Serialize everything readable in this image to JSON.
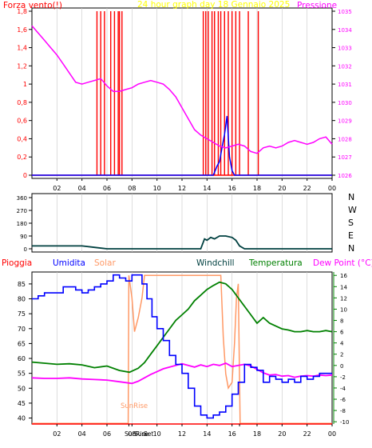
{
  "colors": {
    "axis": "#000000",
    "grid": "#c8c8c8",
    "wind_speed": "#0000ff",
    "wind_gust": "#ff0000",
    "pressure": "#ff00ff",
    "wind_dir": "#004040",
    "rain": "#ff0000",
    "humidity": "#0000ff",
    "solar": "#ff9966",
    "windchill": "#004040",
    "temperature": "#008000",
    "dew_point": "#ff00ff",
    "title": "#ffff00",
    "right_axis_bottom": "#008000",
    "solar_label": "#ff9966"
  },
  "chart_data": [
    {
      "type": "line",
      "id": "wind-pressure",
      "title": "24 hour graph day   18 Gennaio 2025",
      "ylabel_left": "Forza vento(!)",
      "ylabel_right": "Pressione",
      "ylim_left": [
        0,
        1.8
      ],
      "yticks_left": [
        "0",
        "0,2",
        "0,4",
        "0,6",
        "0,8",
        "1",
        "1,2",
        "1,4",
        "1,6",
        "1,8"
      ],
      "ylim_right": [
        1026,
        1035
      ],
      "yticks_right": [
        "1026",
        "1027",
        "1028",
        "1029",
        "1030",
        "1031",
        "1032",
        "1033",
        "1034",
        "1035"
      ],
      "xlim": [
        0,
        24
      ],
      "xticks": [
        "02",
        "04",
        "06",
        "08",
        "10",
        "12",
        "14",
        "16",
        "18",
        "20",
        "22",
        "00"
      ],
      "grid": true,
      "series": [
        {
          "name": "Pressione",
          "axis": "right",
          "x": [
            0,
            0.5,
            1,
            1.5,
            2,
            2.5,
            3,
            3.5,
            4,
            4.5,
            5,
            5.5,
            6,
            6.5,
            7,
            7.5,
            8,
            8.5,
            9,
            9.5,
            10,
            10.5,
            11,
            11.5,
            12,
            12.5,
            13,
            13.5,
            14,
            14.5,
            15,
            15.5,
            16,
            16.5,
            17,
            17.5,
            18,
            18.5,
            19,
            19.5,
            20,
            20.5,
            21,
            21.5,
            22,
            22.5,
            23,
            23.5,
            24
          ],
          "values": [
            1034.2,
            1033.8,
            1033.4,
            1033.0,
            1032.6,
            1032.1,
            1031.6,
            1031.1,
            1031.0,
            1031.1,
            1031.2,
            1031.3,
            1030.9,
            1030.6,
            1030.6,
            1030.7,
            1030.8,
            1031.0,
            1031.1,
            1031.2,
            1031.1,
            1031.0,
            1030.7,
            1030.3,
            1029.7,
            1029.1,
            1028.5,
            1028.2,
            1028.0,
            1027.8,
            1027.6,
            1027.5,
            1027.6,
            1027.7,
            1027.6,
            1027.3,
            1027.2,
            1027.5,
            1027.6,
            1027.5,
            1027.6,
            1027.8,
            1027.9,
            1027.8,
            1027.7,
            1027.8,
            1028.0,
            1028.1,
            1027.7
          ]
        },
        {
          "name": "wind speed",
          "axis": "left",
          "x": [
            0,
            14.5,
            14.8,
            15.0,
            15.2,
            15.4,
            15.6,
            15.8,
            16.0,
            16.2,
            24
          ],
          "values": [
            0,
            0,
            0.1,
            0.15,
            0.3,
            0.45,
            0.65,
            0.2,
            0.05,
            0,
            0
          ]
        },
        {
          "name": "wind gust",
          "axis": "left",
          "spikes": [
            5.2,
            5.5,
            5.8,
            6.3,
            6.6,
            6.9,
            7.0,
            7.2,
            13.7,
            13.9,
            14.1,
            14.4,
            14.6,
            14.9,
            15.1,
            15.4,
            15.7,
            16.0,
            16.3,
            16.6,
            17.3,
            18.1
          ],
          "peak": 1.8
        }
      ]
    },
    {
      "type": "line",
      "id": "wind-direction",
      "ylim": [
        0,
        360
      ],
      "yticks": [
        "0",
        "90",
        "180",
        "270",
        "360"
      ],
      "direction_labels": [
        "N",
        "W",
        "S",
        "E",
        "N"
      ],
      "xlim": [
        0,
        24
      ],
      "grid": true,
      "series": [
        {
          "name": "Direzione",
          "x": [
            0,
            2,
            4,
            5,
            6,
            13.5,
            13.8,
            14.0,
            14.3,
            14.6,
            15.0,
            15.5,
            16.0,
            16.3,
            16.6,
            17,
            24
          ],
          "values": [
            20,
            20,
            20,
            10,
            0,
            0,
            70,
            60,
            80,
            70,
            90,
            90,
            80,
            60,
            20,
            0,
            0
          ]
        }
      ]
    },
    {
      "type": "line",
      "id": "temperature-humidity",
      "legend": [
        "Pioggia",
        "Umidita",
        "Solar",
        "Windchill",
        "Temperatura",
        "Dew Point (°C)"
      ],
      "ylim_left": [
        38,
        89
      ],
      "yticks_left": [
        "40",
        "45",
        "50",
        "55",
        "60",
        "65",
        "70",
        "75",
        "80",
        "85"
      ],
      "ylim_right": [
        -10.4,
        16.6
      ],
      "yticks_right": [
        "-10",
        "-8",
        "-6",
        "-4",
        "-2",
        "0",
        "2",
        "4",
        "6",
        "8",
        "10",
        "12",
        "14",
        "16"
      ],
      "xlim": [
        0,
        24
      ],
      "xticks": [
        "02",
        "04",
        "06",
        "08",
        "10",
        "12",
        "14",
        "16",
        "18",
        "20",
        "22",
        "00"
      ],
      "annotations": [
        "SunRise",
        "SunRise",
        "Sun",
        "Set"
      ],
      "sunrise_hour": 7.75,
      "sunset_hour": 16.6,
      "grid": true,
      "series": [
        {
          "name": "Umidita",
          "axis": "left",
          "step": true,
          "x": [
            0,
            0.5,
            1,
            1.5,
            2,
            2.5,
            3,
            3.5,
            4,
            4.5,
            5,
            5.5,
            6,
            6.5,
            7,
            7.5,
            8,
            8.5,
            8.8,
            9.2,
            9.6,
            10.0,
            10.5,
            11,
            11.5,
            12,
            12.5,
            13,
            13.5,
            14,
            14.5,
            15,
            15.5,
            16,
            16.5,
            17,
            17.5,
            18,
            18.5,
            19,
            19.5,
            20,
            20.5,
            21,
            21.5,
            22,
            22.5,
            23,
            24
          ],
          "values": [
            80,
            81,
            82,
            82,
            82,
            84,
            84,
            83,
            82,
            83,
            84,
            85,
            86,
            88,
            87,
            86,
            88,
            88,
            85,
            80,
            74,
            70,
            66,
            61,
            58,
            55,
            50,
            44,
            41,
            40,
            41,
            42,
            44,
            48,
            52,
            58,
            57,
            56,
            52,
            54,
            53,
            52,
            53,
            52,
            54,
            53,
            54,
            55,
            55
          ]
        },
        {
          "name": "Temperatura",
          "axis": "right",
          "x": [
            0,
            1,
            2,
            3,
            4,
            5,
            6,
            7,
            7.8,
            8.5,
            9,
            9.5,
            10,
            10.5,
            11,
            11.5,
            12,
            12.5,
            13,
            13.5,
            14,
            14.5,
            15,
            15.5,
            16,
            16.5,
            17,
            17.5,
            18,
            18.5,
            19,
            19.5,
            20,
            20.5,
            21,
            21.5,
            22,
            22.5,
            23,
            23.5,
            24
          ],
          "values": [
            0.6,
            0.4,
            0.2,
            0.3,
            0.1,
            -0.4,
            -0.1,
            -0.9,
            -1.2,
            -0.5,
            0.5,
            2.0,
            3.5,
            5.0,
            6.5,
            8.0,
            9.0,
            10.0,
            11.5,
            12.5,
            13.5,
            14.2,
            14.8,
            14.5,
            13.5,
            12.0,
            10.5,
            9.0,
            7.5,
            8.5,
            7.5,
            7.0,
            6.5,
            6.3,
            6.0,
            6.0,
            6.2,
            6.0,
            6.0,
            6.2,
            6.0
          ]
        },
        {
          "name": "Windchill",
          "axis": "right",
          "x": [
            0,
            1,
            2,
            3,
            4,
            5,
            6,
            7,
            7.8,
            8.5,
            9,
            9.5,
            10,
            10.5,
            11,
            11.5,
            12,
            12.5,
            13,
            13.5,
            14,
            14.5,
            15,
            15.5,
            16,
            16.5,
            17,
            17.5,
            18,
            18.5,
            19,
            19.5,
            20,
            20.5,
            21,
            21.5,
            22,
            22.5,
            23,
            23.5,
            24
          ],
          "values": [
            0.6,
            0.4,
            0.2,
            0.3,
            0.1,
            -0.4,
            -0.1,
            -0.9,
            -1.2,
            -0.5,
            0.5,
            2.0,
            3.5,
            5.0,
            6.5,
            8.0,
            9.0,
            10.0,
            11.5,
            12.5,
            13.5,
            14.2,
            14.8,
            14.5,
            13.5,
            12.0,
            10.5,
            9.0,
            7.5,
            8.5,
            7.5,
            7.0,
            6.5,
            6.3,
            6.0,
            6.0,
            6.2,
            6.0,
            6.0,
            6.2,
            6.0
          ]
        },
        {
          "name": "Dew Point",
          "axis": "right",
          "x": [
            0,
            1,
            2,
            3,
            4,
            5,
            6,
            7,
            8,
            8.5,
            9,
            9.5,
            10,
            10.5,
            11,
            11.5,
            12,
            12.5,
            13,
            13.5,
            14,
            14.5,
            15,
            15.5,
            16,
            16.5,
            17,
            17.5,
            18,
            18.5,
            19,
            19.5,
            20,
            20.5,
            21,
            21.5,
            22,
            22.5,
            23,
            23.5,
            24
          ],
          "values": [
            -2.2,
            -2.3,
            -2.3,
            -2.2,
            -2.4,
            -2.5,
            -2.6,
            -2.9,
            -3.2,
            -2.8,
            -2.2,
            -1.6,
            -1.1,
            -0.6,
            -0.3,
            0.0,
            0.3,
            0.0,
            -0.3,
            0.1,
            -0.2,
            0.2,
            0.0,
            0.4,
            -0.2,
            0.0,
            0.2,
            -0.1,
            -0.7,
            -1.3,
            -1.7,
            -1.6,
            -1.9,
            -1.8,
            -2.1,
            -1.9,
            -1.8,
            -1.9,
            -1.7,
            -1.8,
            -1.7
          ]
        },
        {
          "name": "Solar",
          "axis": "right",
          "x": [
            0,
            7.7,
            7.75,
            8.0,
            8.2,
            8.5,
            8.8,
            9.0,
            9.3,
            9.6,
            15.1,
            15.3,
            15.5,
            15.7,
            16.0,
            16.2,
            16.35,
            16.5,
            16.65,
            24
          ],
          "values": [
            -10.3,
            -10.3,
            16.0,
            12.0,
            6.0,
            8.5,
            12.0,
            16.0,
            16.0,
            16.0,
            16.0,
            5.0,
            -1.5,
            -4.0,
            -3.0,
            4.0,
            12.0,
            14.5,
            -10.3,
            -10.3
          ]
        },
        {
          "name": "Pioggia",
          "axis": "left",
          "x": [
            0,
            24
          ],
          "values": [
            38,
            38
          ]
        }
      ]
    }
  ]
}
